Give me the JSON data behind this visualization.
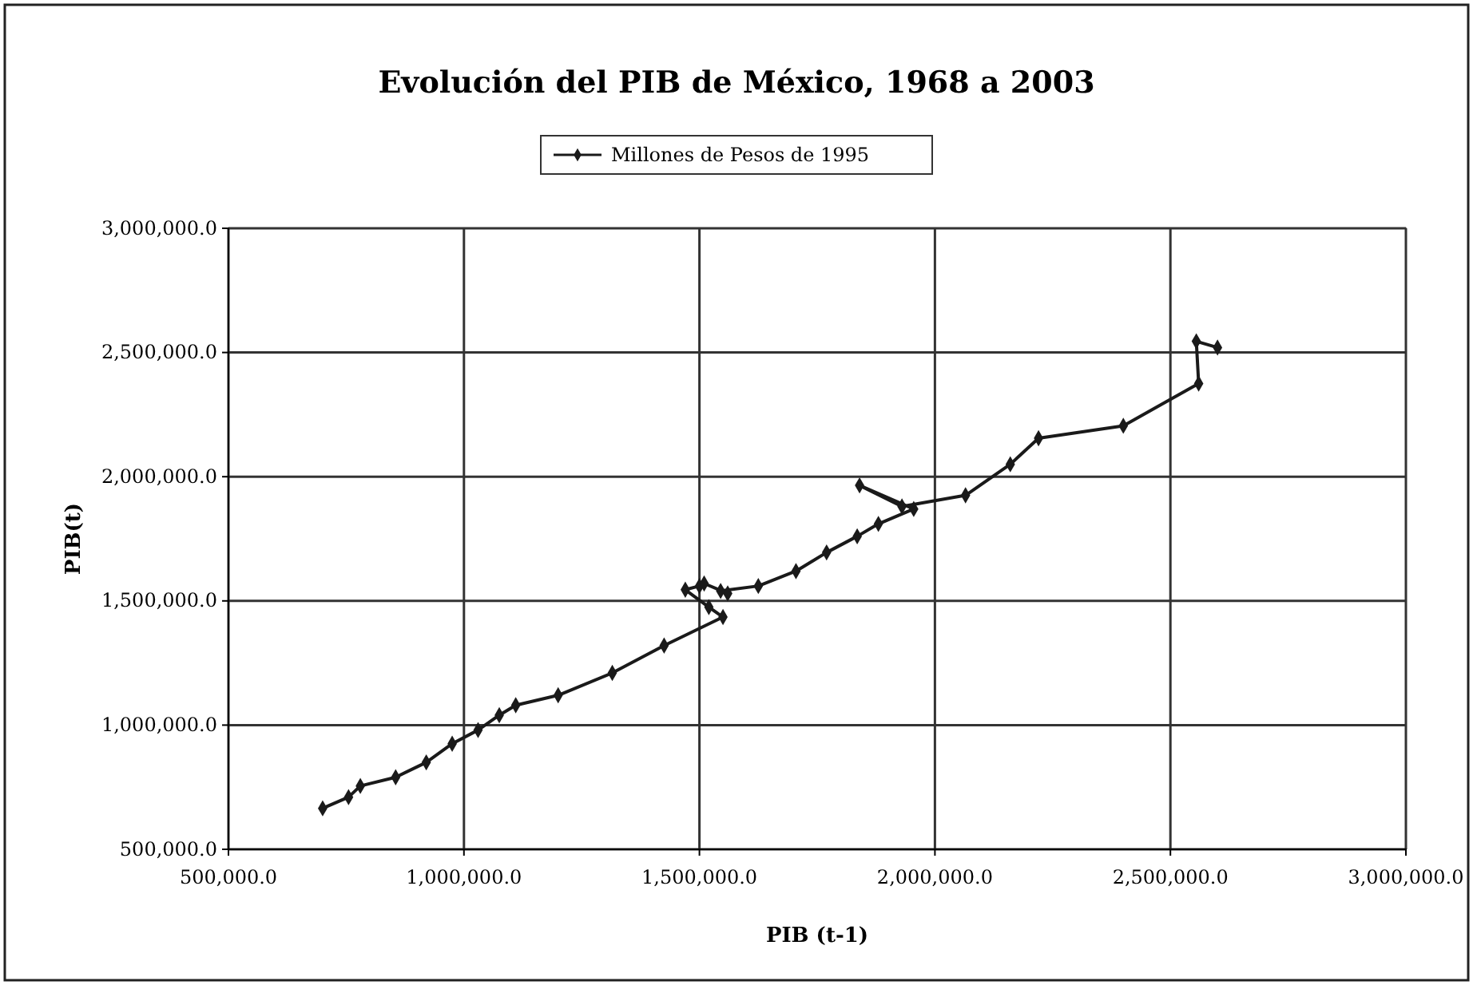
{
  "chart_data": {
    "type": "line",
    "title": "Evolución del PIB de México, 1968 a 2003",
    "xlabel": "PIB (t-1)",
    "ylabel": "PIB(t)",
    "xlim": [
      500000,
      3000000
    ],
    "ylim": [
      500000,
      3000000
    ],
    "xticks": [
      {
        "value": 500000,
        "label": "500,000.0"
      },
      {
        "value": 1000000,
        "label": "1,000,000.0"
      },
      {
        "value": 1500000,
        "label": "1,500,000.0"
      },
      {
        "value": 2000000,
        "label": "2,000,000.0"
      },
      {
        "value": 2500000,
        "label": "2,500,000.0"
      },
      {
        "value": 3000000,
        "label": "3,000,000.0"
      }
    ],
    "yticks": [
      {
        "value": 500000,
        "label": "500,000.0"
      },
      {
        "value": 1000000,
        "label": "1,000,000.0"
      },
      {
        "value": 1500000,
        "label": "1,500,000.0"
      },
      {
        "value": 2000000,
        "label": "2,000,000.0"
      },
      {
        "value": 2500000,
        "label": "2,500,000.0"
      },
      {
        "value": 3000000,
        "label": "3,000,000.0"
      }
    ],
    "grid": true,
    "legend": "top",
    "marker": "diamond",
    "line_style": "solid",
    "series": [
      {
        "name": "Millones de Pesos de 1995",
        "color": "#1a1a1a",
        "x": [
          700000,
          755000,
          780000,
          855000,
          920000,
          975000,
          1030000,
          1075000,
          1110000,
          1200000,
          1315000,
          1425000,
          1550000,
          1520000,
          1470000,
          1500000,
          1510000,
          1560000,
          1545000,
          1625000,
          1705000,
          1770000,
          1835000,
          1880000,
          1955000,
          1840000,
          1930000,
          2065000,
          2160000,
          2220000,
          2400000,
          2560000,
          2555000,
          2600000
        ],
        "values": [
          665000,
          710000,
          755000,
          790000,
          850000,
          925000,
          980000,
          1040000,
          1080000,
          1120000,
          1210000,
          1320000,
          1435000,
          1475000,
          1545000,
          1560000,
          1570000,
          1530000,
          1540000,
          1560000,
          1620000,
          1695000,
          1760000,
          1810000,
          1870000,
          1965000,
          1880000,
          1925000,
          2050000,
          2155000,
          2205000,
          2375000,
          2545000,
          2520000
        ]
      }
    ]
  }
}
